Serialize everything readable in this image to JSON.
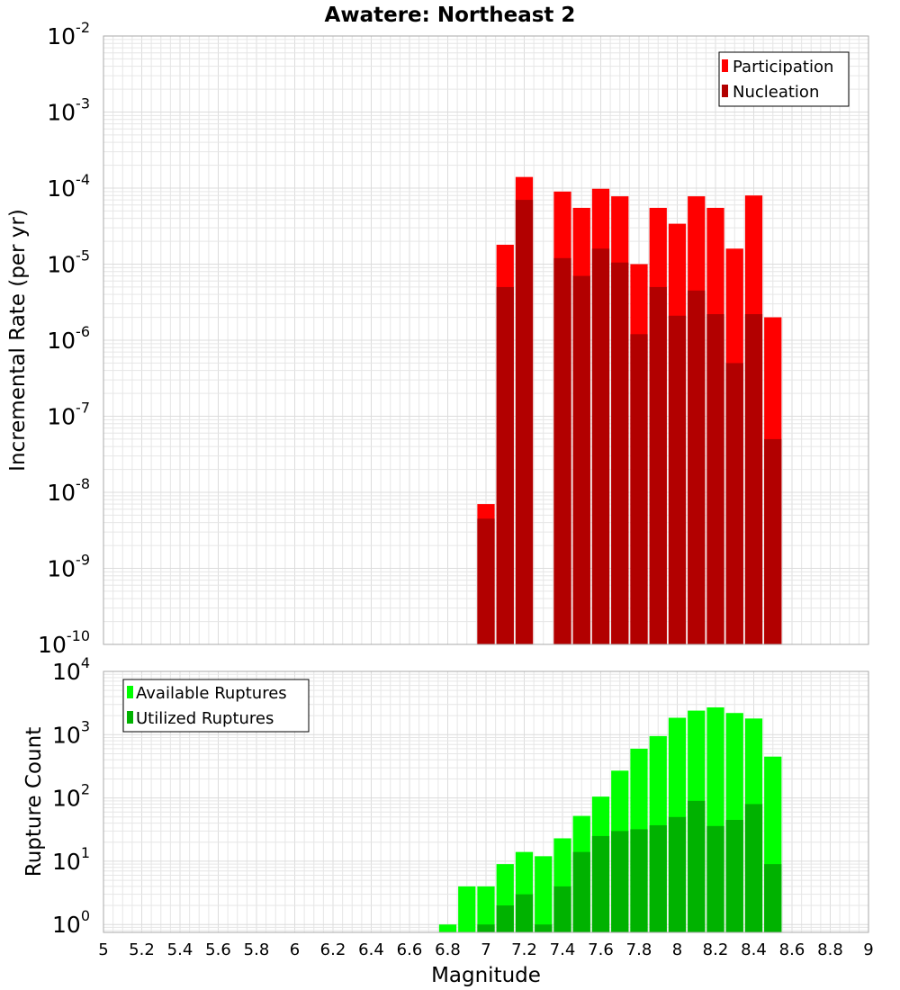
{
  "chart_data": [
    {
      "type": "bar",
      "title": "Awatere: Northeast 2",
      "ylabel": "Incremental Rate (per yr)",
      "yscale": "log",
      "ylim": [
        1e-10,
        0.01
      ],
      "xlim": [
        5,
        9
      ],
      "bar_width": 0.1,
      "grid": true,
      "legend_position": "top-right",
      "series": [
        {
          "name": "Participation",
          "color": "#ff0000",
          "x": [
            7.0,
            7.1,
            7.2,
            7.4,
            7.5,
            7.6,
            7.7,
            7.8,
            7.9,
            8.0,
            8.1,
            8.2,
            8.3,
            8.4,
            8.5
          ],
          "values": [
            7e-09,
            1.8e-05,
            0.00014,
            9e-05,
            5.5e-05,
            9.8e-05,
            7.8e-05,
            1e-05,
            5.5e-05,
            3.4e-05,
            7.8e-05,
            5.5e-05,
            1.6e-05,
            8e-05,
            2e-06
          ]
        },
        {
          "name": "Nucleation",
          "color": "#b20000",
          "x": [
            7.0,
            7.1,
            7.2,
            7.4,
            7.5,
            7.6,
            7.7,
            7.8,
            7.9,
            8.0,
            8.1,
            8.2,
            8.3,
            8.4,
            8.5
          ],
          "values": [
            4.5e-09,
            5e-06,
            7e-05,
            1.2e-05,
            7e-06,
            1.6e-05,
            1.05e-05,
            1.2e-06,
            5e-06,
            2.1e-06,
            4.5e-06,
            2.2e-06,
            5e-07,
            2.2e-06,
            5e-08
          ]
        }
      ]
    },
    {
      "type": "bar",
      "xlabel": "Magnitude",
      "ylabel": "Rupture Count",
      "yscale": "log",
      "ylim": [
        0.75,
        10000
      ],
      "xlim": [
        5,
        9
      ],
      "bar_width": 0.1,
      "grid": true,
      "legend_position": "top-left",
      "x_ticks": [
        "5",
        "5.2",
        "5.4",
        "5.6",
        "5.8",
        "6",
        "6.2",
        "6.4",
        "6.6",
        "6.8",
        "7",
        "7.2",
        "7.4",
        "7.6",
        "7.8",
        "8",
        "8.2",
        "8.4",
        "8.6",
        "8.8",
        "9"
      ],
      "series": [
        {
          "name": "Available Ruptures",
          "color": "#00ff00",
          "x": [
            6.8,
            6.9,
            7.0,
            7.1,
            7.2,
            7.3,
            7.4,
            7.5,
            7.6,
            7.7,
            7.8,
            7.9,
            8.0,
            8.1,
            8.2,
            8.3,
            8.4,
            8.5
          ],
          "values": [
            1,
            4,
            4,
            9,
            14,
            12,
            23,
            52,
            105,
            270,
            600,
            950,
            1850,
            2400,
            2700,
            2200,
            1800,
            450
          ]
        },
        {
          "name": "Utilized Ruptures",
          "color": "#00b200",
          "x": [
            7.0,
            7.1,
            7.2,
            7.3,
            7.4,
            7.5,
            7.6,
            7.7,
            7.8,
            7.9,
            8.0,
            8.1,
            8.2,
            8.3,
            8.4,
            8.5
          ],
          "values": [
            1,
            2,
            3,
            1,
            4,
            14,
            25,
            30,
            32,
            37,
            50,
            90,
            36,
            45,
            80,
            9
          ]
        }
      ]
    }
  ]
}
